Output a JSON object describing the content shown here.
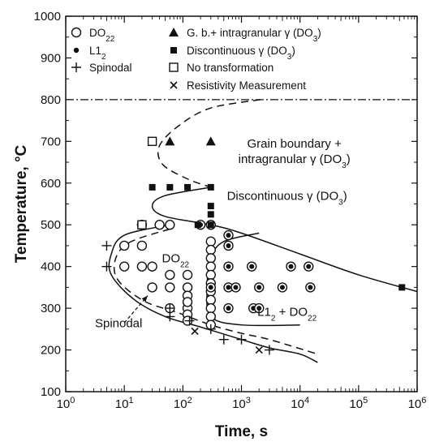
{
  "chart_data": {
    "type": "scatter",
    "xlabel": "Time, s",
    "ylabel": "Temperature, °C",
    "xscale": "log",
    "xlim": [
      1,
      1000000
    ],
    "ylim": [
      100,
      1000
    ],
    "x_ticks": [
      {
        "v": 1,
        "base": "10",
        "exp": "0"
      },
      {
        "v": 10,
        "base": "10",
        "exp": "1"
      },
      {
        "v": 100,
        "base": "10",
        "exp": "2"
      },
      {
        "v": 1000,
        "base": "10",
        "exp": "3"
      },
      {
        "v": 10000,
        "base": "10",
        "exp": "4"
      },
      {
        "v": 100000,
        "base": "10",
        "exp": "5"
      },
      {
        "v": 1000000,
        "base": "10",
        "exp": "6"
      }
    ],
    "y_ticks": [
      100,
      200,
      300,
      400,
      500,
      600,
      700,
      800,
      900,
      1000
    ],
    "legend": [
      {
        "marker": "open-circle",
        "parts": [
          [
            "DO",
            "n"
          ],
          [
            "22",
            "s"
          ]
        ]
      },
      {
        "marker": "filled-triangle",
        "parts": [
          [
            "G. b.+ intragranular γ (DO",
            "n"
          ],
          [
            "3",
            "s"
          ],
          [
            ")",
            "n"
          ]
        ]
      },
      {
        "marker": "small-dot",
        "parts": [
          [
            "L1",
            "n"
          ],
          [
            "2",
            "s"
          ]
        ]
      },
      {
        "marker": "filled-square",
        "parts": [
          [
            "Discontinuous γ (DO",
            "n"
          ],
          [
            "3",
            "s"
          ],
          [
            ")",
            "n"
          ]
        ]
      },
      {
        "marker": "plus",
        "parts": [
          [
            "Spinodal",
            "n"
          ]
        ]
      },
      {
        "marker": "open-square",
        "parts": [
          [
            "No transformation",
            "n"
          ]
        ]
      },
      {
        "marker": "cross",
        "parts": [
          [
            "Resistivity Measurement",
            "n"
          ]
        ]
      }
    ],
    "regions": [
      {
        "lines": [
          [
            [
              "Grain boundary +",
              "n"
            ]
          ],
          [
            [
              "intragranular γ (DO",
              "n"
            ],
            [
              "3",
              "s"
            ],
            [
              ")",
              "n"
            ]
          ]
        ],
        "x": 8000,
        "y": 685
      },
      {
        "lines": [
          [
            [
              "Discontinuous γ (DO",
              "n"
            ],
            [
              "3",
              "s"
            ],
            [
              ")",
              "n"
            ]
          ]
        ],
        "x": 6000,
        "y": 560
      },
      {
        "lines": [
          [
            [
              "DO",
              "n"
            ],
            [
              "22",
              "s"
            ]
          ]
        ],
        "x": 75,
        "y": 410
      },
      {
        "lines": [
          [
            [
              "L1",
              "n"
            ],
            [
              "2",
              "s"
            ],
            [
              " + DO",
              "n"
            ],
            [
              "22",
              "s"
            ]
          ]
        ],
        "x": 6000,
        "y": 282
      },
      {
        "lines": [
          [
            [
              "Spinodal",
              "n"
            ]
          ]
        ],
        "x": 8,
        "y": 255
      }
    ],
    "series": [
      {
        "marker": "open-circle",
        "points": [
          [
            20,
            500
          ],
          [
            40,
            500
          ],
          [
            60,
            500
          ],
          [
            10,
            450
          ],
          [
            20,
            450
          ],
          [
            10,
            400
          ],
          [
            20,
            400
          ],
          [
            30,
            400
          ],
          [
            30,
            350
          ],
          [
            60,
            350
          ],
          [
            60,
            380
          ],
          [
            120,
            380
          ],
          [
            120,
            350
          ],
          [
            60,
            300
          ],
          [
            120,
            300
          ]
        ]
      },
      {
        "marker": "open-circle-col",
        "points": [
          [
            300,
            460
          ],
          [
            300,
            440
          ],
          [
            300,
            420
          ],
          [
            300,
            400
          ],
          [
            300,
            380
          ],
          [
            300,
            360
          ],
          [
            300,
            340
          ],
          [
            300,
            320
          ],
          [
            300,
            300
          ],
          [
            300,
            280
          ],
          [
            300,
            260
          ],
          [
            120,
            330
          ],
          [
            120,
            315
          ],
          [
            120,
            285
          ],
          [
            120,
            270
          ]
        ]
      },
      {
        "marker": "circled-dot",
        "points": [
          [
            200,
            500
          ],
          [
            300,
            500
          ],
          [
            600,
            475
          ],
          [
            600,
            450
          ],
          [
            600,
            400
          ],
          [
            600,
            350
          ],
          [
            300,
            350
          ],
          [
            1500,
            400
          ],
          [
            800,
            350
          ],
          [
            2000,
            350
          ],
          [
            5000,
            350
          ],
          [
            7000,
            400
          ],
          [
            14000,
            400
          ],
          [
            15000,
            350
          ],
          [
            600,
            300
          ],
          [
            1600,
            300
          ],
          [
            2000,
            300
          ]
        ]
      },
      {
        "marker": "filled-triangle",
        "points": [
          [
            60,
            700
          ],
          [
            300,
            700
          ]
        ]
      },
      {
        "marker": "filled-square",
        "points": [
          [
            30,
            590
          ],
          [
            60,
            590
          ],
          [
            120,
            590
          ],
          [
            300,
            590
          ],
          [
            300,
            545
          ],
          [
            300,
            525
          ],
          [
            180,
            500
          ],
          [
            300,
            500
          ],
          [
            550000,
            350
          ]
        ]
      },
      {
        "marker": "open-square",
        "points": [
          [
            30,
            700
          ],
          [
            20,
            500
          ]
        ]
      },
      {
        "marker": "plus",
        "points": [
          [
            5,
            450
          ],
          [
            5,
            400
          ],
          [
            60,
            300
          ],
          [
            60,
            280
          ],
          [
            130,
            270
          ],
          [
            300,
            250
          ],
          [
            500,
            225
          ],
          [
            1000,
            225
          ],
          [
            3000,
            200
          ]
        ]
      },
      {
        "marker": "cross",
        "points": [
          [
            160,
            245
          ],
          [
            2000,
            200
          ]
        ]
      }
    ],
    "boundaries": [
      {
        "style": "dashed",
        "points": [
          [
            2100,
            800
          ],
          [
            300,
            780
          ],
          [
            90,
            740
          ],
          [
            40,
            690
          ],
          [
            45,
            645
          ],
          [
            120,
            610
          ],
          [
            300,
            590
          ]
        ]
      },
      {
        "style": "solid",
        "points": [
          [
            300,
            590
          ],
          [
            50,
            570
          ],
          [
            30,
            545
          ],
          [
            50,
            520
          ],
          [
            300,
            500
          ],
          [
            1000,
            480
          ],
          [
            10000,
            430
          ],
          [
            100000,
            380
          ],
          [
            1000000,
            340
          ]
        ]
      },
      {
        "style": "solid",
        "points": [
          [
            2000,
            480
          ],
          [
            500,
            460
          ],
          [
            300,
            420
          ],
          [
            260,
            350
          ],
          [
            300,
            280
          ],
          [
            1000,
            260
          ],
          [
            10000,
            260
          ]
        ]
      },
      {
        "style": "solid",
        "points": [
          [
            60,
            500
          ],
          [
            10,
            475
          ],
          [
            6,
            430
          ],
          [
            6,
            380
          ],
          [
            15,
            320
          ],
          [
            50,
            280
          ],
          [
            200,
            255
          ],
          [
            1000,
            225
          ],
          [
            3000,
            205
          ],
          [
            10000,
            190
          ],
          [
            20000,
            170
          ]
        ]
      },
      {
        "style": "dashed",
        "points": [
          [
            60,
            490
          ],
          [
            10,
            450
          ],
          [
            7,
            380
          ],
          [
            20,
            320
          ],
          [
            80,
            290
          ],
          [
            300,
            260
          ],
          [
            1000,
            240
          ],
          [
            3000,
            225
          ],
          [
            20000,
            190
          ]
        ]
      },
      {
        "style": "dashdot",
        "points": [
          [
            1,
            800
          ],
          [
            1000000,
            800
          ]
        ]
      }
    ],
    "spinodal_arrow": {
      "from": [
        10,
        265
      ],
      "to": [
        25,
        330
      ]
    }
  }
}
